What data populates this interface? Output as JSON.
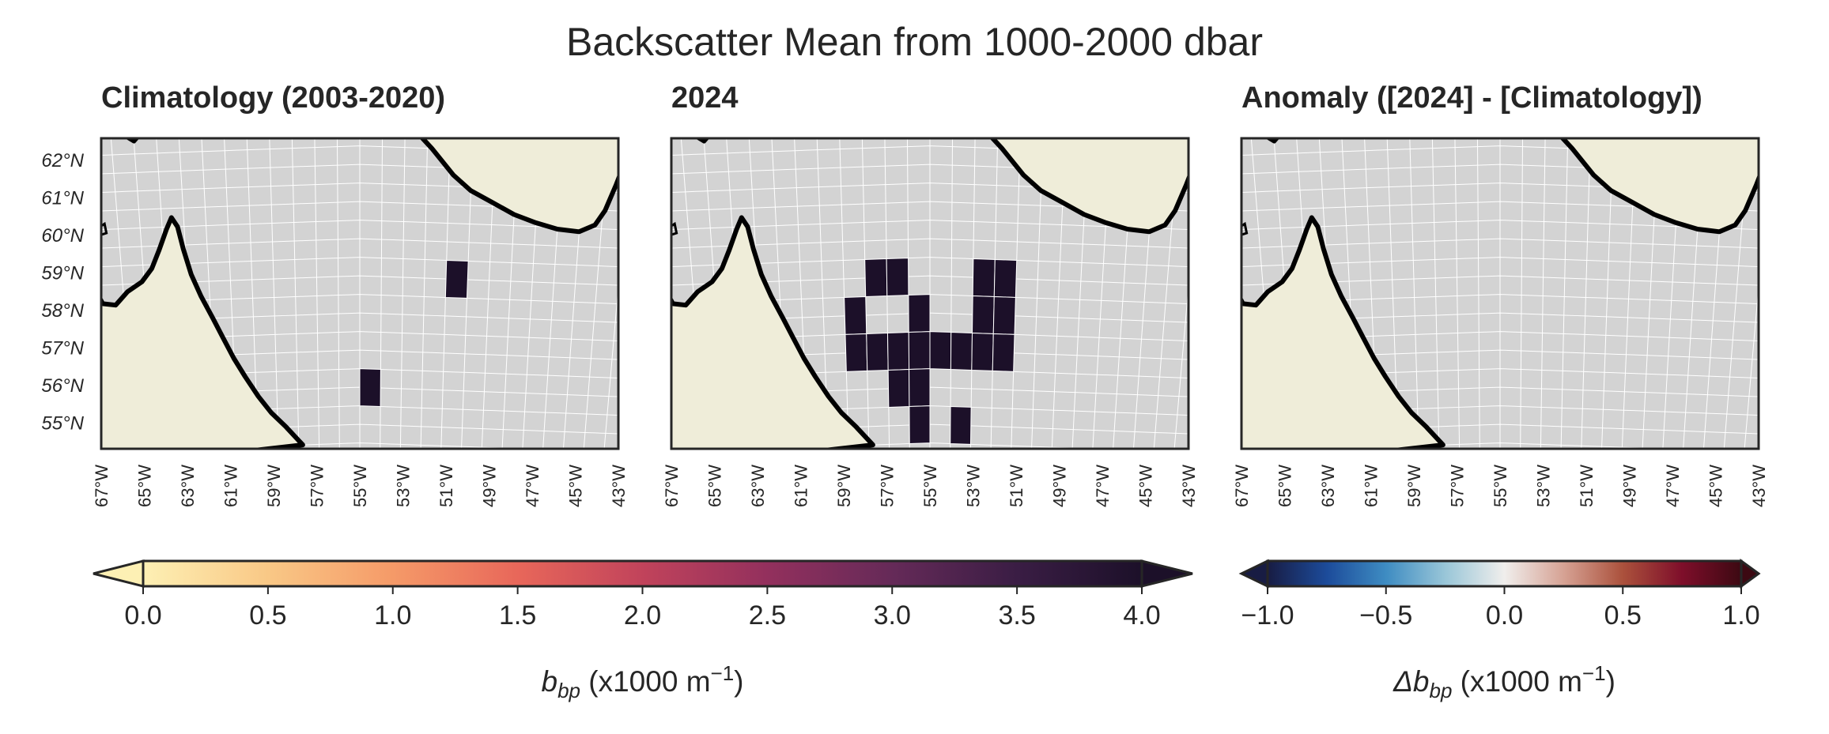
{
  "figure": {
    "suptitle": "Backscatter Mean from 1000-2000 dbar"
  },
  "chart_data": [
    {
      "type": "heatmap",
      "panel": "climatology",
      "title": "Climatology (2003-2020)",
      "xlim": [
        -67,
        -43
      ],
      "ylim": [
        54.3,
        62.8
      ],
      "x_tick_labels": [
        "67°W",
        "65°W",
        "63°W",
        "61°W",
        "59°W",
        "57°W",
        "55°W",
        "53°W",
        "51°W",
        "49°W",
        "47°W",
        "45°W",
        "43°W"
      ],
      "y_tick_labels": [
        "62°N",
        "61°N",
        "60°N",
        "59°N",
        "58°N",
        "57°N",
        "56°N",
        "55°N"
      ],
      "grid": true,
      "cells_note_units": "lon/lat box centres, value in x1000 m^-1",
      "cells": [
        {
          "lon": -50.5,
          "lat": 58.5,
          "value": 4.0
        },
        {
          "lon": -54.5,
          "lat": 55.5,
          "value": 4.0
        }
      ]
    },
    {
      "type": "heatmap",
      "panel": "2024",
      "title": "2024",
      "xlim": [
        -67,
        -43
      ],
      "ylim": [
        54.3,
        62.8
      ],
      "x_tick_labels": [
        "67°W",
        "65°W",
        "63°W",
        "61°W",
        "59°W",
        "57°W",
        "55°W",
        "53°W",
        "51°W",
        "49°W",
        "47°W",
        "45°W",
        "43°W"
      ],
      "grid": true,
      "cells": [
        {
          "lon": -57.5,
          "lat": 58.5,
          "value": 4.0
        },
        {
          "lon": -56.5,
          "lat": 58.5,
          "value": 4.0
        },
        {
          "lon": -52.5,
          "lat": 58.5,
          "value": 4.0
        },
        {
          "lon": -51.5,
          "lat": 58.5,
          "value": 4.0
        },
        {
          "lon": -58.5,
          "lat": 57.5,
          "value": 4.0
        },
        {
          "lon": -55.5,
          "lat": 57.5,
          "value": 4.0
        },
        {
          "lon": -52.5,
          "lat": 57.5,
          "value": 4.0
        },
        {
          "lon": -51.5,
          "lat": 57.5,
          "value": 4.0
        },
        {
          "lon": -58.5,
          "lat": 56.5,
          "value": 4.0
        },
        {
          "lon": -57.5,
          "lat": 56.5,
          "value": 4.0
        },
        {
          "lon": -56.5,
          "lat": 56.5,
          "value": 4.0
        },
        {
          "lon": -55.5,
          "lat": 56.5,
          "value": 4.0
        },
        {
          "lon": -54.5,
          "lat": 56.5,
          "value": 4.0
        },
        {
          "lon": -53.5,
          "lat": 56.5,
          "value": 4.0
        },
        {
          "lon": -52.5,
          "lat": 56.5,
          "value": 4.0
        },
        {
          "lon": -51.5,
          "lat": 56.5,
          "value": 4.0
        },
        {
          "lon": -56.5,
          "lat": 55.5,
          "value": 4.0
        },
        {
          "lon": -55.5,
          "lat": 55.5,
          "value": 4.0
        },
        {
          "lon": -55.5,
          "lat": 54.5,
          "value": 4.0
        },
        {
          "lon": -53.5,
          "lat": 54.5,
          "value": 4.0
        }
      ]
    },
    {
      "type": "heatmap",
      "panel": "anomaly",
      "title": "Anomaly ([2024] - [Climatology])",
      "xlim": [
        -67,
        -43
      ],
      "ylim": [
        54.3,
        62.8
      ],
      "x_tick_labels": [
        "67°W",
        "65°W",
        "63°W",
        "61°W",
        "59°W",
        "57°W",
        "55°W",
        "53°W",
        "51°W",
        "49°W",
        "47°W",
        "45°W",
        "43°W"
      ],
      "grid": true,
      "cells": []
    }
  ],
  "colorbars": [
    {
      "name": "bbp",
      "label_base": "b",
      "label_sub": "bp",
      "label_units": " (x1000 m",
      "label_exp": "−1",
      "label_close": ")",
      "ticks": [
        "0.0",
        "0.5",
        "1.0",
        "1.5",
        "2.0",
        "2.5",
        "3.0",
        "3.5",
        "4.0"
      ],
      "range": [
        0,
        4
      ],
      "extend": "both",
      "colors": [
        "#fdf0b4",
        "#f9c886",
        "#f59a68",
        "#e8675a",
        "#c1435b",
        "#93305d",
        "#652a58",
        "#3a1d44",
        "#1c1029"
      ]
    },
    {
      "name": "delta-bbp",
      "label_base": "Δb",
      "label_sub": "bp",
      "label_units": " (x1000 m",
      "label_exp": "−1",
      "label_close": ")",
      "ticks": [
        "−1.0",
        "−0.5",
        "0.0",
        "0.5",
        "1.0"
      ],
      "range": [
        -1,
        1
      ],
      "extend": "both",
      "colors": [
        "#181c43",
        "#1c4b9a",
        "#3e8cc2",
        "#99c6d8",
        "#f0eeec",
        "#d6a294",
        "#ab513c",
        "#7e0e2a",
        "#3c0912"
      ]
    }
  ],
  "style": {
    "ocean_color": "#d3d3d3",
    "land_color": "#efedd9",
    "coast_color": "#000000",
    "grid_color": "#ffffff",
    "cell_color_max": "#1c1029",
    "axes_edge_color": "#262626"
  }
}
